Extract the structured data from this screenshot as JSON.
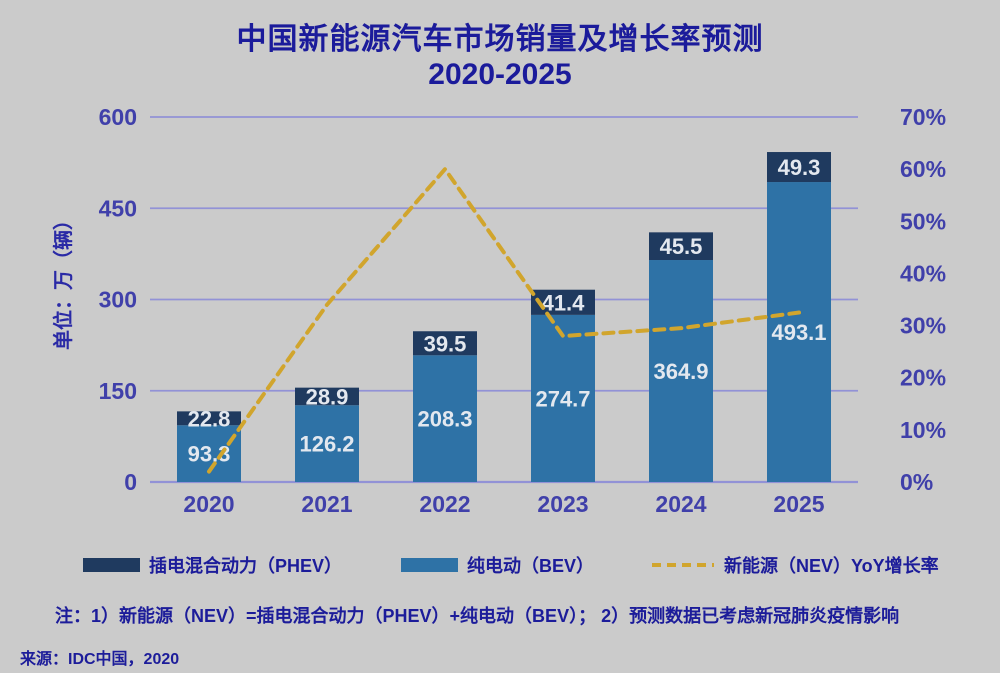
{
  "title": {
    "line1": "中国新能源汽车市场销量及增长率预测",
    "line2": "2020-2025"
  },
  "note": "注：1）新能源（NEV）=插电混合动力（PHEV）+纯电动（BEV）； 2）预测数据已考虑新冠肺炎疫情影响",
  "source": "来源：IDC中国，2020",
  "chart_data": {
    "type": "bar",
    "subtype": "stacked-bars-with-yoy-line",
    "title": "中国新能源汽车市场销量及增长率预测",
    "subtitle": "2020-2025",
    "categories": [
      "2020",
      "2021",
      "2022",
      "2023",
      "2024",
      "2025"
    ],
    "series": [
      {
        "name": "插电混合动力（PHEV）",
        "type": "bar",
        "stack": "total",
        "order": "top",
        "color": "#1f3a5f",
        "values": [
          22.8,
          28.9,
          39.5,
          41.4,
          45.5,
          49.3
        ]
      },
      {
        "name": "纯电动（BEV）",
        "type": "bar",
        "stack": "total",
        "order": "bottom",
        "color": "#2e72a6",
        "values": [
          93.3,
          126.2,
          208.3,
          274.7,
          364.9,
          493.1
        ]
      },
      {
        "name": "新能源（NEV）YoY增长率",
        "type": "line",
        "axis": "right",
        "style": "dashed",
        "color": "#d1a52d",
        "values_pct": [
          2,
          34,
          60,
          28,
          29.5,
          32.5
        ]
      }
    ],
    "left_axis": {
      "title": "单位：万（辆）",
      "ticks": [
        0,
        150,
        300,
        450,
        600
      ],
      "min": 0,
      "max": 600
    },
    "right_axis": {
      "ticks": [
        "0%",
        "10%",
        "20%",
        "30%",
        "40%",
        "50%",
        "60%",
        "70%"
      ],
      "min_pct": 0,
      "max_pct": 70
    },
    "grid": true,
    "legend_position": "bottom",
    "colors": {
      "background": "#cbcbcb",
      "grid_line": "#9292d6",
      "axis_text": "#4040aa",
      "title_text": "#1b1b9b",
      "bar_label_text": "#e3e8ef",
      "note_text": "#1c1c9a"
    }
  }
}
